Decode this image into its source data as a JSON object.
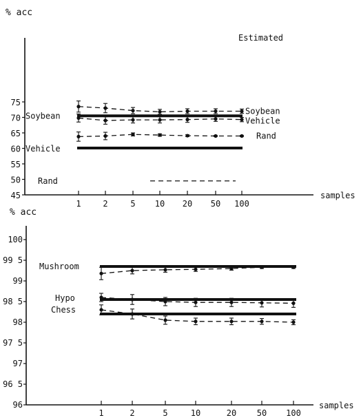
{
  "chart_data": [
    {
      "type": "line",
      "title": "",
      "ylabel": "% acc",
      "xlabel": "samples",
      "x": [
        "1",
        "2",
        "5",
        "10",
        "20",
        "50",
        "100"
      ],
      "y_ticks": [
        "75",
        "70",
        "65",
        "60",
        "55",
        "50",
        "45"
      ],
      "ylim": [
        45,
        76
      ],
      "legend_heading": "Estimated",
      "baselines": [
        {
          "label": "Soybean",
          "value": 70.5
        },
        {
          "label": "Vehicle",
          "value": 60.1
        }
      ],
      "baseline_text_only": [
        {
          "label": "Rand",
          "value": 49.5
        }
      ],
      "series": [
        {
          "name": "Soybean",
          "values": [
            73.5,
            73.0,
            72.2,
            71.8,
            72.0,
            72.0,
            72.0
          ],
          "err": [
            1.8,
            1.5,
            1.0,
            0.8,
            0.8,
            0.8,
            0.7
          ]
        },
        {
          "name": "Vehicle",
          "values": [
            69.8,
            69.0,
            69.2,
            69.2,
            69.3,
            69.5,
            69.3
          ],
          "err": [
            1.3,
            1.2,
            1.0,
            1.0,
            0.9,
            0.8,
            0.7
          ]
        },
        {
          "name": "Rand",
          "values": [
            63.8,
            64.0,
            64.5,
            64.3,
            64.1,
            64.0,
            64.0
          ],
          "err": [
            1.5,
            1.2,
            0.5,
            0.4,
            0.3,
            0.2,
            0.2
          ]
        }
      ]
    },
    {
      "type": "line",
      "title": "",
      "ylabel": "% acc",
      "xlabel": "samples",
      "x": [
        "1",
        "2",
        "5",
        "10",
        "20",
        "50",
        "100"
      ],
      "y_ticks": [
        "100",
        "99 5",
        "99",
        "98 5",
        "98",
        "97 5",
        "97",
        "96 5",
        "96"
      ],
      "ylim": [
        96,
        100
      ],
      "baselines": [
        {
          "label": "Mushroom",
          "value": 99.35
        },
        {
          "label": "Hypo",
          "value": 98.55
        },
        {
          "label": "Chess",
          "value": 98.2
        }
      ],
      "series": [
        {
          "name": "Mushroom",
          "values": [
            99.18,
            99.25,
            99.27,
            99.28,
            99.3,
            99.33,
            99.33
          ],
          "err": [
            0.15,
            0.08,
            0.06,
            0.05,
            0.04,
            0.03,
            0.03
          ]
        },
        {
          "name": "Hypo",
          "values": [
            98.6,
            98.55,
            98.5,
            98.48,
            98.48,
            98.47,
            98.46
          ],
          "err": [
            0.1,
            0.12,
            0.1,
            0.1,
            0.1,
            0.1,
            0.1
          ]
        },
        {
          "name": "Chess",
          "values": [
            98.3,
            98.2,
            98.05,
            98.02,
            98.02,
            98.02,
            98.0
          ],
          "err": [
            0.12,
            0.12,
            0.1,
            0.08,
            0.08,
            0.07,
            0.06
          ]
        }
      ]
    }
  ]
}
